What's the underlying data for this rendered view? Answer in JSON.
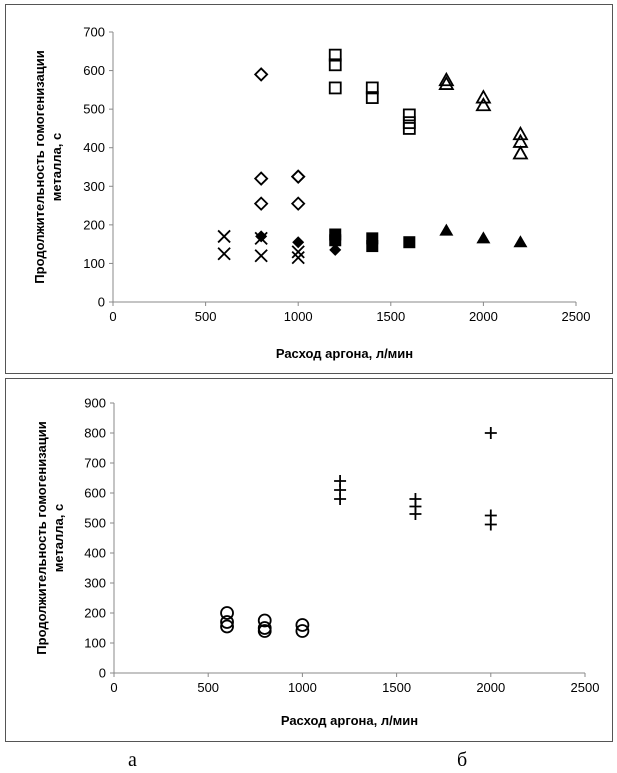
{
  "captions": {
    "a": "а",
    "b": "б"
  },
  "chart_data": [
    {
      "type": "scatter",
      "xlabel": "Расход аргона, л/мин",
      "ylabel": "Продолжительность гомогенизации металла, с",
      "xlim": [
        0,
        2500
      ],
      "ylim": [
        0,
        700
      ],
      "xticks": [
        "0",
        "500",
        "1000",
        "1500",
        "2000",
        "2500"
      ],
      "yticks": [
        "0",
        "100",
        "200",
        "300",
        "400",
        "500",
        "600",
        "700"
      ],
      "grid": false,
      "series": [
        {
          "marker": "cross",
          "points": [
            [
              600,
              170
            ],
            [
              600,
              125
            ],
            [
              800,
              165
            ],
            [
              800,
              120
            ],
            [
              1000,
              130
            ],
            [
              1000,
              115
            ]
          ]
        },
        {
          "marker": "diamond-open",
          "points": [
            [
              800,
              590
            ],
            [
              800,
              320
            ],
            [
              800,
              255
            ],
            [
              1000,
              325
            ],
            [
              1000,
              325
            ],
            [
              1000,
              255
            ]
          ]
        },
        {
          "marker": "diamond-filled",
          "points": [
            [
              800,
              170
            ],
            [
              1000,
              155
            ],
            [
              1200,
              135
            ],
            [
              1200,
              170
            ]
          ]
        },
        {
          "marker": "square-open",
          "points": [
            [
              1200,
              640
            ],
            [
              1200,
              615
            ],
            [
              1200,
              555
            ],
            [
              1400,
              555
            ],
            [
              1400,
              530
            ],
            [
              1600,
              485
            ],
            [
              1600,
              465
            ],
            [
              1600,
              450
            ]
          ]
        },
        {
          "marker": "square-filled",
          "points": [
            [
              1200,
              175
            ],
            [
              1200,
              160
            ],
            [
              1400,
              165
            ],
            [
              1400,
              145
            ],
            [
              1600,
              155
            ]
          ]
        },
        {
          "marker": "triangle-open",
          "points": [
            [
              1800,
              575
            ],
            [
              1800,
              565
            ],
            [
              2000,
              530
            ],
            [
              2000,
              510
            ],
            [
              2200,
              435
            ],
            [
              2200,
              415
            ],
            [
              2200,
              385
            ]
          ]
        },
        {
          "marker": "triangle-filled",
          "points": [
            [
              1800,
              185
            ],
            [
              2000,
              165
            ],
            [
              2200,
              155
            ]
          ]
        }
      ]
    },
    {
      "type": "scatter",
      "xlabel": "Расход аргона, л/мин",
      "ylabel": "Продолжительность гомогенизации металла, с",
      "xlim": [
        0,
        2500
      ],
      "ylim": [
        0,
        900
      ],
      "xticks": [
        "0",
        "500",
        "1000",
        "1500",
        "2000",
        "2500"
      ],
      "yticks": [
        "0",
        "100",
        "200",
        "300",
        "400",
        "500",
        "600",
        "700",
        "800",
        "900"
      ],
      "grid": false,
      "series": [
        {
          "marker": "circle-open",
          "points": [
            [
              600,
              200
            ],
            [
              600,
              170
            ],
            [
              600,
              155
            ],
            [
              800,
              175
            ],
            [
              800,
              150
            ],
            [
              800,
              140
            ],
            [
              1000,
              160
            ],
            [
              1000,
              140
            ]
          ]
        },
        {
          "marker": "plus",
          "points": [
            [
              1200,
              640
            ],
            [
              1200,
              610
            ],
            [
              1200,
              580
            ],
            [
              1600,
              580
            ],
            [
              1600,
              555
            ],
            [
              1600,
              530
            ],
            [
              2000,
              800
            ],
            [
              2000,
              525
            ],
            [
              2000,
              495
            ]
          ]
        }
      ]
    }
  ]
}
